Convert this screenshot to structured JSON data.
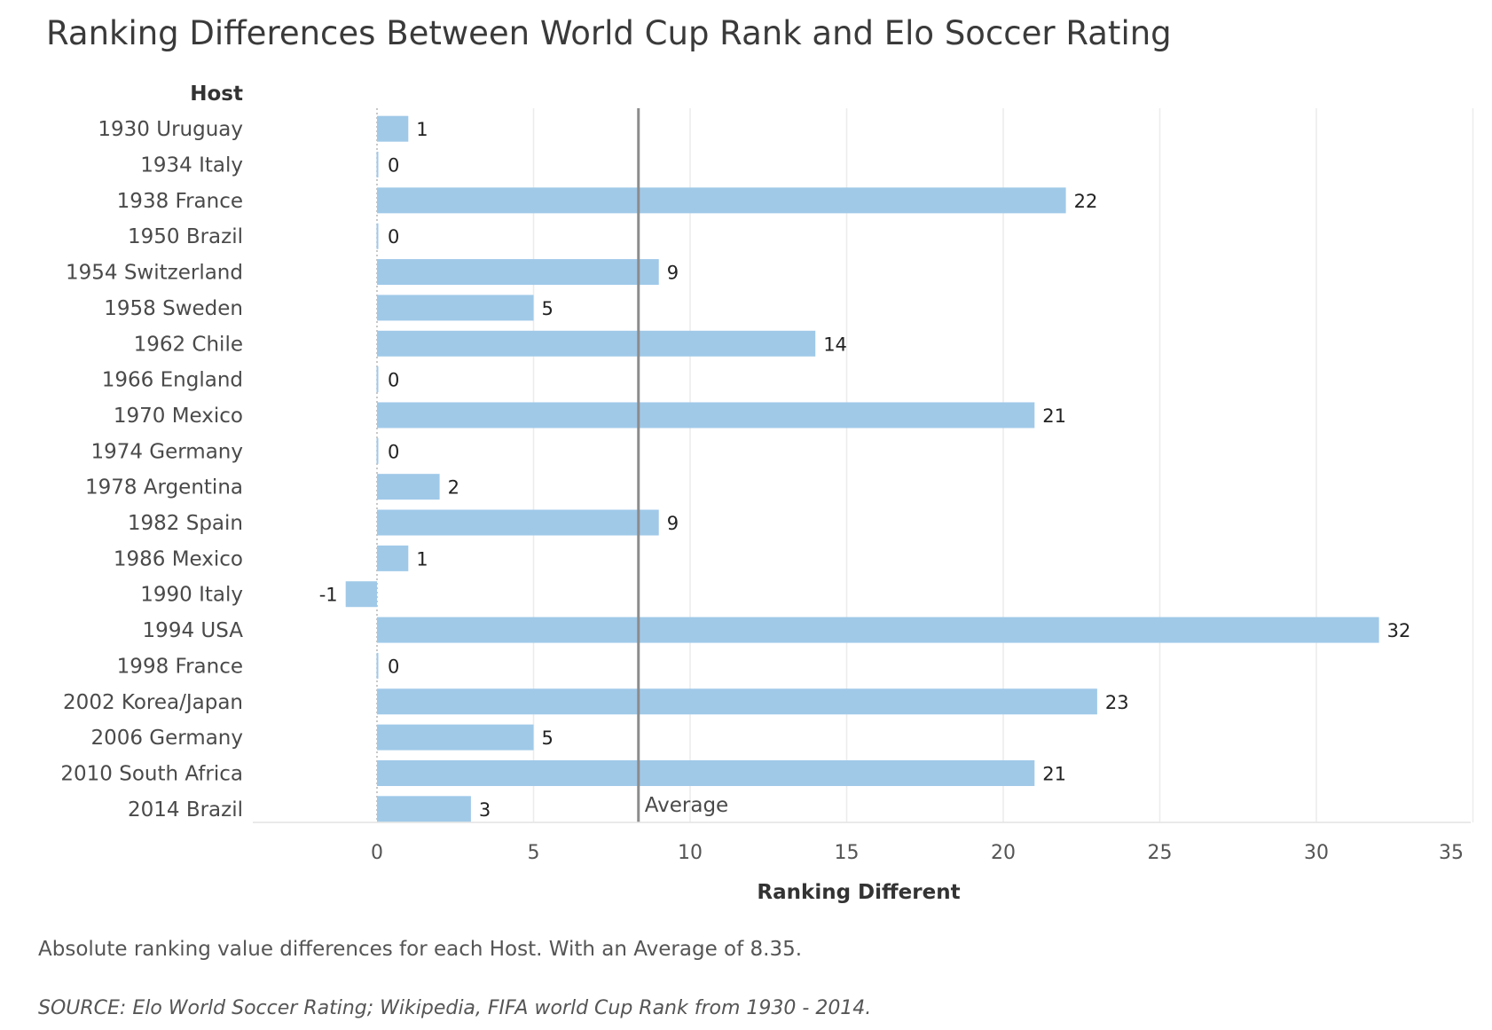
{
  "chart_data": {
    "type": "bar",
    "orientation": "horizontal",
    "title": "Ranking Differences Between World Cup Rank and Elo Soccer Rating",
    "row_header": "Host",
    "xlabel": "Ranking Different",
    "categories": [
      "1930 Uruguay",
      "1934 Italy",
      "1938 France",
      "1950 Brazil",
      "1954 Switzerland",
      "1958 Sweden",
      "1962 Chile",
      "1966 England",
      "1970 Mexico",
      "1974 Germany",
      "1978 Argentina",
      "1982 Spain",
      "1986 Mexico",
      "1990 Italy",
      "1994 USA",
      "1998 France",
      "2002 Korea/Japan",
      "2006 Germany",
      "2010 South Africa",
      "2014 Brazil"
    ],
    "values": [
      1,
      0,
      22,
      0,
      9,
      5,
      14,
      0,
      21,
      0,
      2,
      9,
      1,
      -1,
      32,
      0,
      23,
      5,
      21,
      3
    ],
    "xlim": [
      -4,
      35
    ],
    "xticks": [
      0,
      5,
      10,
      15,
      20,
      25,
      30,
      35
    ],
    "grid": "vertical",
    "bar_color": "#a0c9e8",
    "reference_line": {
      "value": 8.35,
      "label": "Average",
      "color": "#8c8c8c"
    },
    "caption": "Absolute ranking value differences for each Host. With an Average of 8.35.",
    "source": "SOURCE: Elo World Soccer Rating; Wikipedia, FIFA world Cup Rank from 1930 - 2014."
  }
}
